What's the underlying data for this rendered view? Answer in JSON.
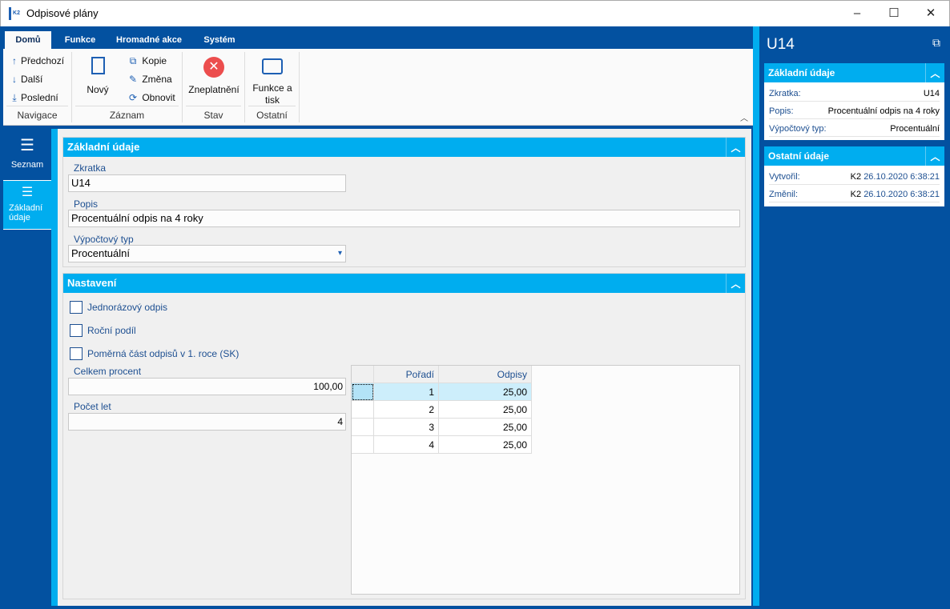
{
  "window": {
    "title": "Odpisové plány",
    "logo_text": "K2",
    "min": "–",
    "max": "☐",
    "close": "✕"
  },
  "ribbon": {
    "tabs": [
      "Domů",
      "Funkce",
      "Hromadné akce",
      "Systém"
    ],
    "navigace": {
      "label": "Navigace",
      "prev": "Předchozí",
      "next": "Další",
      "last": "Poslední"
    },
    "zaznam": {
      "label": "Záznam",
      "new": "Nový",
      "copy": "Kopie",
      "edit": "Změna",
      "refresh": "Obnovit"
    },
    "stav": {
      "label": "Stav",
      "invalidate": "Zneplatnění"
    },
    "ostatni": {
      "label": "Ostatní",
      "print_line1": "Funkce a",
      "print_line2": "tisk"
    }
  },
  "leftnav": {
    "items": [
      {
        "label": "Seznam",
        "icon": "hamburger-icon"
      },
      {
        "label_line1": "Základní",
        "label_line2": "údaje",
        "icon": "list-icon"
      }
    ]
  },
  "basic": {
    "title": "Základní údaje",
    "zkratka_label": "Zkratka",
    "zkratka": "U14",
    "popis_label": "Popis",
    "popis": "Procentuální odpis na 4 roky",
    "typ_label": "Výpočtový typ",
    "typ": "Procentuální"
  },
  "settings": {
    "title": "Nastavení",
    "checks": [
      {
        "label": "Jednorázový odpis",
        "checked": false
      },
      {
        "label": "Roční podíl",
        "checked": false
      },
      {
        "label": "Poměrná část odpisů v 1. roce (SK)",
        "checked": false
      }
    ],
    "celkem_label": "Celkem procent",
    "celkem": "100,00",
    "pocet_label": "Počet let",
    "pocet": "4"
  },
  "grid": {
    "columns": [
      "Pořadí",
      "Odpisy"
    ],
    "rows": [
      [
        "1",
        "25,00"
      ],
      [
        "2",
        "25,00"
      ],
      [
        "3",
        "25,00"
      ],
      [
        "4",
        "25,00"
      ]
    ]
  },
  "right": {
    "title": "U14",
    "basic": {
      "title": "Základní údaje",
      "rows": [
        {
          "k": "Zkratka:",
          "v": "U14"
        },
        {
          "k": "Popis:",
          "v": "Procentuální odpis na 4 roky"
        },
        {
          "k": "Výpočtový typ:",
          "v": "Procentuální"
        }
      ]
    },
    "other": {
      "title": "Ostatní údaje",
      "rows": [
        {
          "k": "Vytvořil:",
          "user": "K2",
          "v": "26.10.2020 6:38:21"
        },
        {
          "k": "Změnil:",
          "user": "K2",
          "v": "26.10.2020 6:38:21"
        }
      ]
    }
  },
  "colors": {
    "dark_blue": "#0351a0",
    "cyan": "#00adef",
    "selected_row": "#cdeefb"
  }
}
